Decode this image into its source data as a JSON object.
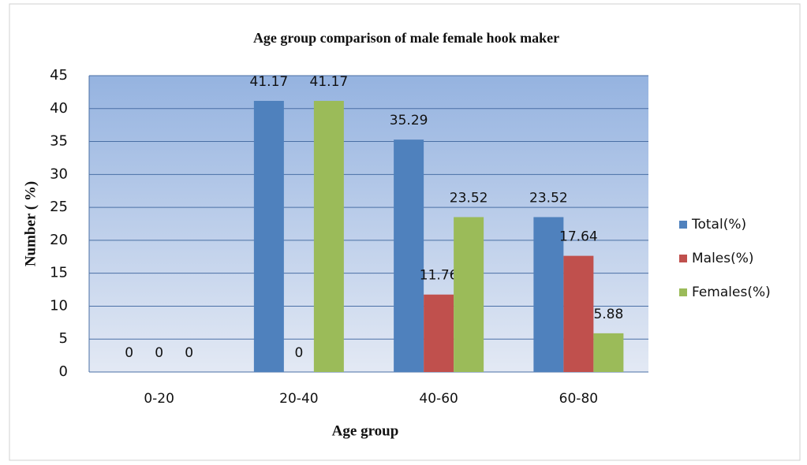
{
  "chart_data": {
    "type": "bar",
    "title": "Age group comparison  of male female hook maker",
    "x_label": "Age group",
    "y_label": "Number ( %)",
    "categories": [
      "0-20",
      "20-40",
      "40-60",
      "60-80"
    ],
    "series": [
      {
        "name": "Total(%)",
        "color": "#4f81bd",
        "values": [
          0,
          41.17,
          35.29,
          23.52
        ]
      },
      {
        "name": "Males(%)",
        "color": "#c0504d",
        "values": [
          0,
          0,
          11.76,
          17.64
        ]
      },
      {
        "name": "Females(%)",
        "color": "#9bbb59",
        "values": [
          0,
          41.17,
          23.52,
          5.88
        ]
      }
    ],
    "ylim": [
      0,
      45
    ],
    "yticks": [
      0,
      5,
      10,
      15,
      20,
      25,
      30,
      35,
      40,
      45
    ],
    "grid": true,
    "legend": "right"
  }
}
